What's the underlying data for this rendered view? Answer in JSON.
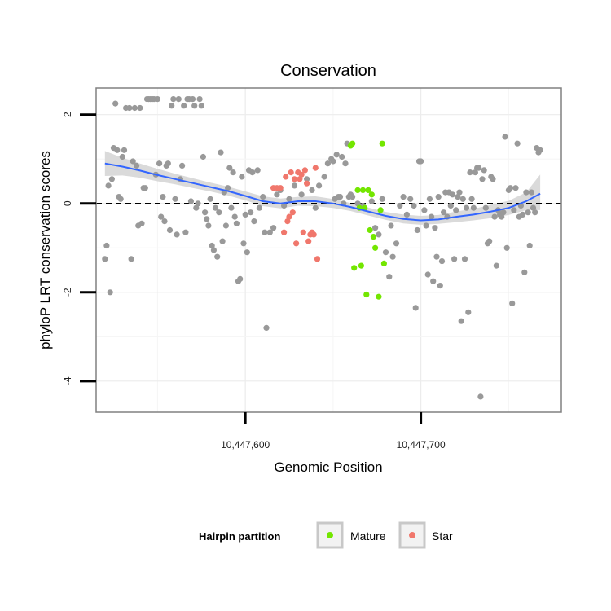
{
  "chart_data": {
    "type": "scatter",
    "title": "Conservation",
    "xlabel": "Genomic Position",
    "ylabel": "phyloP LRT conservation scores",
    "xlim": [
      10447515,
      10447780
    ],
    "ylim": [
      -4.7,
      2.6
    ],
    "x_ticks": [
      10447600,
      10447700
    ],
    "x_tick_labels": [
      "10,447,600",
      "10,447,700"
    ],
    "y_ticks": [
      -4,
      -2,
      0,
      2
    ],
    "y_tick_labels": [
      "-4",
      "-2",
      "0",
      "2"
    ],
    "reference_line": {
      "y": 0,
      "style": "dashed"
    },
    "grid": true,
    "legend": {
      "title": "Hairpin partition",
      "placement": "bottom",
      "entries": [
        {
          "label": "Mature",
          "color": "#73e600"
        },
        {
          "label": "Star",
          "color": "#f0776c"
        }
      ]
    },
    "colors": {
      "other": "#999999",
      "mature": "#73e600",
      "star": "#f0776c",
      "smooth": "#3366ff",
      "band": "#d3d3d3"
    },
    "series": [
      {
        "group": "other",
        "points": [
          [
            10447520,
            -1.25
          ],
          [
            10447521,
            -0.95
          ],
          [
            10447522,
            0.4
          ],
          [
            10447523,
            -2.0
          ],
          [
            10447524,
            0.55
          ],
          [
            10447525,
            1.25
          ],
          [
            10447526,
            2.25
          ],
          [
            10447527,
            1.2
          ],
          [
            10447528,
            0.15
          ],
          [
            10447529,
            0.1
          ],
          [
            10447530,
            1.05
          ],
          [
            10447531,
            1.2
          ],
          [
            10447532,
            2.15
          ],
          [
            10447534,
            2.15
          ],
          [
            10447535,
            -1.25
          ],
          [
            10447536,
            0.95
          ],
          [
            10447537,
            2.15
          ],
          [
            10447538,
            0.85
          ],
          [
            10447539,
            -0.5
          ],
          [
            10447540,
            2.15
          ],
          [
            10447541,
            -0.45
          ],
          [
            10447542,
            0.35
          ],
          [
            10447543,
            0.35
          ],
          [
            10447544,
            2.35
          ],
          [
            10447545,
            2.35
          ],
          [
            10447546,
            2.35
          ],
          [
            10447547,
            2.35
          ],
          [
            10447548,
            2.35
          ],
          [
            10447549,
            0.65
          ],
          [
            10447550,
            2.35
          ],
          [
            10447551,
            0.9
          ],
          [
            10447552,
            -0.3
          ],
          [
            10447553,
            0.15
          ],
          [
            10447554,
            -0.4
          ],
          [
            10447555,
            0.85
          ],
          [
            10447556,
            0.9
          ],
          [
            10447557,
            -0.6
          ],
          [
            10447558,
            2.2
          ],
          [
            10447559,
            2.35
          ],
          [
            10447560,
            0.1
          ],
          [
            10447561,
            -0.7
          ],
          [
            10447562,
            2.35
          ],
          [
            10447563,
            0.55
          ],
          [
            10447564,
            0.85
          ],
          [
            10447565,
            2.2
          ],
          [
            10447566,
            -0.65
          ],
          [
            10447567,
            2.35
          ],
          [
            10447568,
            2.35
          ],
          [
            10447569,
            0.05
          ],
          [
            10447570,
            2.35
          ],
          [
            10447571,
            2.2
          ],
          [
            10447572,
            -0.1
          ],
          [
            10447573,
            0.0
          ],
          [
            10447574,
            2.35
          ],
          [
            10447575,
            2.2
          ],
          [
            10447576,
            1.05
          ],
          [
            10447577,
            -0.2
          ],
          [
            10447578,
            -0.35
          ],
          [
            10447579,
            -0.5
          ],
          [
            10447580,
            0.1
          ],
          [
            10447581,
            -0.95
          ],
          [
            10447582,
            -1.05
          ],
          [
            10447583,
            -0.1
          ],
          [
            10447584,
            -1.2
          ],
          [
            10447585,
            -0.2
          ],
          [
            10447586,
            1.15
          ],
          [
            10447587,
            -0.85
          ],
          [
            10447588,
            0.25
          ],
          [
            10447589,
            -0.5
          ],
          [
            10447590,
            0.35
          ],
          [
            10447591,
            0.8
          ],
          [
            10447592,
            -0.1
          ],
          [
            10447593,
            0.7
          ],
          [
            10447594,
            -0.3
          ],
          [
            10447595,
            -0.45
          ],
          [
            10447596,
            -1.75
          ],
          [
            10447597,
            -1.7
          ],
          [
            10447598,
            0.6
          ],
          [
            10447599,
            -0.9
          ],
          [
            10447600,
            -0.25
          ],
          [
            10447601,
            -1.1
          ],
          [
            10447602,
            0.75
          ],
          [
            10447603,
            -0.2
          ],
          [
            10447604,
            0.7
          ],
          [
            10447605,
            -0.4
          ],
          [
            10447607,
            0.75
          ],
          [
            10447608,
            -0.1
          ],
          [
            10447610,
            0.15
          ],
          [
            10447611,
            -0.65
          ],
          [
            10447612,
            -2.8
          ],
          [
            10447614,
            -0.65
          ],
          [
            10447616,
            -0.55
          ],
          [
            10447618,
            0.2
          ],
          [
            10447620,
            0.3
          ],
          [
            10447622,
            -0.05
          ],
          [
            10447625,
            0.1
          ],
          [
            10447628,
            0.4
          ],
          [
            10447632,
            0.2
          ],
          [
            10447635,
            0.55
          ],
          [
            10447638,
            0.3
          ],
          [
            10447640,
            -0.1
          ],
          [
            10447642,
            0.4
          ],
          [
            10447645,
            0.6
          ],
          [
            10447647,
            0.9
          ],
          [
            10447649,
            1.0
          ],
          [
            10447650,
            0.95
          ],
          [
            10447651,
            0.1
          ],
          [
            10447652,
            1.1
          ],
          [
            10447653,
            0.15
          ],
          [
            10447654,
            0.15
          ],
          [
            10447655,
            1.05
          ],
          [
            10447656,
            0.0
          ],
          [
            10447657,
            0.9
          ],
          [
            10447658,
            1.35
          ],
          [
            10447659,
            0.15
          ],
          [
            10447660,
            0.2
          ],
          [
            10447661,
            0.15
          ],
          [
            10447664,
            0.0
          ],
          [
            10447667,
            -0.05
          ],
          [
            10447672,
            0.05
          ],
          [
            10447674,
            -0.55
          ],
          [
            10447676,
            -0.7
          ],
          [
            10447678,
            0.1
          ],
          [
            10447680,
            -1.1
          ],
          [
            10447682,
            -1.65
          ],
          [
            10447683,
            -0.5
          ],
          [
            10447684,
            -1.2
          ],
          [
            10447686,
            -0.9
          ],
          [
            10447688,
            -0.05
          ],
          [
            10447690,
            0.15
          ],
          [
            10447692,
            -0.25
          ],
          [
            10447694,
            0.1
          ],
          [
            10447696,
            -0.05
          ],
          [
            10447697,
            -2.35
          ],
          [
            10447698,
            -0.6
          ],
          [
            10447699,
            0.95
          ],
          [
            10447700,
            0.95
          ],
          [
            10447702,
            -0.15
          ],
          [
            10447703,
            -0.5
          ],
          [
            10447704,
            -1.6
          ],
          [
            10447705,
            0.1
          ],
          [
            10447706,
            -0.3
          ],
          [
            10447707,
            -1.75
          ],
          [
            10447708,
            -0.55
          ],
          [
            10447709,
            -1.2
          ],
          [
            10447710,
            0.15
          ],
          [
            10447711,
            -1.85
          ],
          [
            10447712,
            -1.3
          ],
          [
            10447713,
            -0.2
          ],
          [
            10447714,
            0.25
          ],
          [
            10447715,
            -0.3
          ],
          [
            10447716,
            0.25
          ],
          [
            10447717,
            -0.05
          ],
          [
            10447718,
            0.2
          ],
          [
            10447719,
            -1.25
          ],
          [
            10447720,
            -0.15
          ],
          [
            10447721,
            0.15
          ],
          [
            10447722,
            0.25
          ],
          [
            10447723,
            -2.65
          ],
          [
            10447724,
            0.1
          ],
          [
            10447725,
            -1.25
          ],
          [
            10447726,
            -0.1
          ],
          [
            10447727,
            -2.45
          ],
          [
            10447728,
            0.7
          ],
          [
            10447729,
            0.1
          ],
          [
            10447730,
            -0.1
          ],
          [
            10447731,
            0.7
          ],
          [
            10447732,
            0.8
          ],
          [
            10447733,
            0.8
          ],
          [
            10447734,
            -4.35
          ],
          [
            10447735,
            0.55
          ],
          [
            10447736,
            0.75
          ],
          [
            10447737,
            -0.1
          ],
          [
            10447738,
            -0.9
          ],
          [
            10447739,
            -0.85
          ],
          [
            10447740,
            0.6
          ],
          [
            10447741,
            0.55
          ],
          [
            10447742,
            -0.3
          ],
          [
            10447743,
            -1.4
          ],
          [
            10447744,
            -0.15
          ],
          [
            10447745,
            -0.25
          ],
          [
            10447746,
            -0.3
          ],
          [
            10447747,
            -0.2
          ],
          [
            10447748,
            1.5
          ],
          [
            10447749,
            -1.0
          ],
          [
            10447750,
            0.3
          ],
          [
            10447751,
            0.35
          ],
          [
            10447752,
            -2.25
          ],
          [
            10447753,
            -0.15
          ],
          [
            10447754,
            0.35
          ],
          [
            10447755,
            1.35
          ],
          [
            10447756,
            -0.3
          ],
          [
            10447757,
            -0.05
          ],
          [
            10447758,
            -0.25
          ],
          [
            10447759,
            -1.55
          ],
          [
            10447760,
            0.25
          ],
          [
            10447761,
            -0.2
          ],
          [
            10447762,
            -0.95
          ],
          [
            10447763,
            0.25
          ],
          [
            10447764,
            -0.1
          ],
          [
            10447765,
            -0.2
          ],
          [
            10447766,
            1.25
          ],
          [
            10447767,
            1.15
          ],
          [
            10447768,
            1.2
          ]
        ]
      },
      {
        "group": "star",
        "name": "Star",
        "points": [
          [
            10447616,
            0.35
          ],
          [
            10447618,
            0.35
          ],
          [
            10447620,
            0.35
          ],
          [
            10447622,
            -0.65
          ],
          [
            10447623,
            0.6
          ],
          [
            10447624,
            -0.4
          ],
          [
            10447625,
            -0.3
          ],
          [
            10447626,
            0.7
          ],
          [
            10447627,
            -0.2
          ],
          [
            10447628,
            0.55
          ],
          [
            10447629,
            -0.9
          ],
          [
            10447630,
            0.7
          ],
          [
            10447631,
            0.55
          ],
          [
            10447632,
            0.65
          ],
          [
            10447633,
            -0.65
          ],
          [
            10447634,
            0.75
          ],
          [
            10447635,
            0.45
          ],
          [
            10447636,
            -0.85
          ],
          [
            10447637,
            -0.7
          ],
          [
            10447638,
            -0.65
          ],
          [
            10447639,
            -0.7
          ],
          [
            10447640,
            0.8
          ],
          [
            10447641,
            -1.25
          ]
        ]
      },
      {
        "group": "mature",
        "name": "Mature",
        "points": [
          [
            10447660,
            1.3
          ],
          [
            10447661,
            1.35
          ],
          [
            10447662,
            -1.45
          ],
          [
            10447664,
            0.3
          ],
          [
            10447665,
            -0.1
          ],
          [
            10447666,
            -1.4
          ],
          [
            10447667,
            0.3
          ],
          [
            10447668,
            -0.1
          ],
          [
            10447669,
            -2.05
          ],
          [
            10447670,
            0.3
          ],
          [
            10447671,
            -0.6
          ],
          [
            10447672,
            0.2
          ],
          [
            10447673,
            -0.75
          ],
          [
            10447674,
            -1.0
          ],
          [
            10447676,
            -2.1
          ],
          [
            10447677,
            -0.15
          ],
          [
            10447678,
            1.35
          ],
          [
            10447679,
            -1.35
          ]
        ]
      }
    ],
    "smooth": {
      "x": [
        10447520,
        10447530,
        10447540,
        10447550,
        10447560,
        10447570,
        10447580,
        10447590,
        10447600,
        10447610,
        10447620,
        10447630,
        10447640,
        10447650,
        10447660,
        10447670,
        10447680,
        10447690,
        10447700,
        10447710,
        10447720,
        10447730,
        10447740,
        10447750,
        10447760,
        10447768
      ],
      "y": [
        0.9,
        0.83,
        0.74,
        0.64,
        0.55,
        0.46,
        0.37,
        0.28,
        0.17,
        0.05,
        0.0,
        0.05,
        0.05,
        0.0,
        -0.08,
        -0.18,
        -0.28,
        -0.35,
        -0.38,
        -0.36,
        -0.3,
        -0.25,
        -0.18,
        -0.1,
        0.05,
        0.22
      ],
      "lower": [
        0.62,
        0.63,
        0.58,
        0.5,
        0.43,
        0.35,
        0.27,
        0.18,
        0.07,
        -0.06,
        -0.11,
        -0.05,
        -0.06,
        -0.1,
        -0.17,
        -0.27,
        -0.37,
        -0.45,
        -0.48,
        -0.46,
        -0.42,
        -0.38,
        -0.33,
        -0.26,
        -0.15,
        -0.15
      ],
      "upper": [
        1.18,
        1.03,
        0.9,
        0.78,
        0.67,
        0.57,
        0.47,
        0.38,
        0.27,
        0.16,
        0.11,
        0.15,
        0.16,
        0.1,
        0.01,
        -0.09,
        -0.19,
        -0.25,
        -0.28,
        -0.26,
        -0.18,
        -0.12,
        -0.03,
        0.06,
        0.25,
        0.65
      ]
    }
  }
}
